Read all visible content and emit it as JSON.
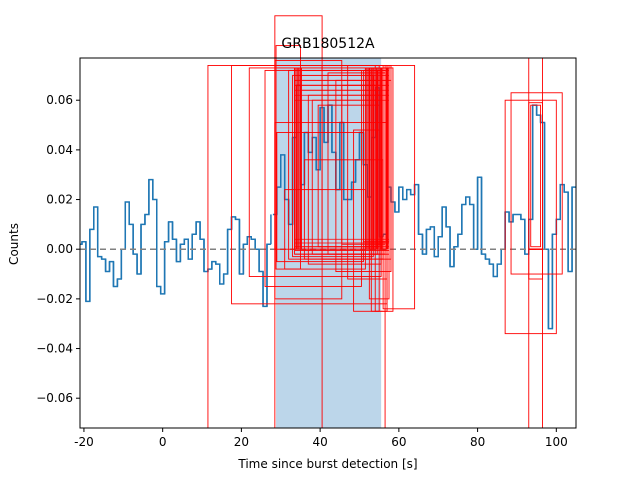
{
  "chart_data": {
    "type": "line",
    "title": "GRB180512A",
    "xlabel": "Time since burst detection [s]",
    "ylabel": "Counts",
    "xlim": [
      -21,
      105
    ],
    "ylim": [
      -0.072,
      0.077
    ],
    "xticks": [
      -20,
      0,
      20,
      40,
      60,
      80,
      100
    ],
    "yticks": [
      -0.06,
      -0.04,
      -0.02,
      0.0,
      0.02,
      0.04,
      0.06
    ],
    "grid": false,
    "colors": {
      "lightcurve": "#1f77b4",
      "burst_region": "#bcd6ea",
      "boxes": "#ff0000",
      "baseline": "#808080"
    },
    "baseline_y": 0.0,
    "burst_region": {
      "x_start": 28.8,
      "x_end": 55.5
    },
    "series": [
      {
        "step": "mid",
        "x_start": -21,
        "dx": 1,
        "values": [
          0.002,
          0.003,
          -0.021,
          0.008,
          0.017,
          -0.003,
          -0.004,
          -0.009,
          -0.005,
          -0.015,
          -0.012,
          0.0,
          0.019,
          0.01,
          -0.002,
          -0.01,
          0.01,
          0.014,
          0.028,
          0.02,
          -0.015,
          -0.018,
          0.003,
          0.011,
          0.004,
          -0.005,
          0.002,
          0.004,
          -0.004,
          0.006,
          0.011,
          0.004,
          -0.009,
          -0.008,
          -0.005,
          -0.006,
          -0.014,
          -0.01,
          0.008,
          0.013,
          0.012,
          -0.01,
          0.002,
          0.005,
          0.004,
          0.0,
          -0.009,
          -0.023,
          0.002,
          0.01,
          -0.006,
          -0.012,
          -0.004,
          0.0,
          0.002,
          0.001,
          -0.005,
          0.003,
          -0.015,
          -0.023,
          0.004,
          -0.005,
          -0.022,
          -0.012,
          0.0,
          0.005,
          0.012,
          0.024,
          0.032,
          0.011,
          -0.006,
          0.005,
          0.005,
          0.012,
          0.018,
          0.01,
          -0.004,
          -0.002,
          0.001,
          0.011,
          -0.002,
          0.003,
          -0.001,
          -0.005,
          0.004,
          0.002,
          0.008,
          0.003,
          -0.006,
          0.005,
          0.016,
          0.006,
          0.003,
          -0.002,
          0.008,
          0.015,
          0.021,
          -0.002,
          0.012,
          0.0,
          -0.003,
          0.004,
          0.009,
          0.005,
          0.015,
          0.018,
          -0.002,
          -0.006,
          0.014,
          0.025,
          0.008,
          0.002,
          -0.004,
          0.014,
          0.001,
          0.002,
          0.004,
          0.005,
          0.002,
          0.013,
          0.006,
          -0.005,
          -0.003,
          -0.004,
          0.0,
          0.006
        ]
      }
    ],
    "burst_curve": [
      {
        "x": 28.5,
        "y": 0.014
      },
      {
        "x": 29.5,
        "y": 0.025
      },
      {
        "x": 30.5,
        "y": 0.038
      },
      {
        "x": 31.5,
        "y": 0.02
      },
      {
        "x": 32.5,
        "y": 0.01
      },
      {
        "x": 33.5,
        "y": 0.045
      },
      {
        "x": 34.5,
        "y": 0.066
      },
      {
        "x": 35.5,
        "y": 0.026
      },
      {
        "x": 36.5,
        "y": 0.047
      },
      {
        "x": 37.5,
        "y": 0.039
      },
      {
        "x": 38.5,
        "y": 0.045
      },
      {
        "x": 39.5,
        "y": 0.032
      },
      {
        "x": 40.5,
        "y": 0.057
      },
      {
        "x": 41.5,
        "y": 0.043
      },
      {
        "x": 42.5,
        "y": 0.058
      },
      {
        "x": 43.5,
        "y": 0.039
      },
      {
        "x": 44.5,
        "y": 0.024
      },
      {
        "x": 45.5,
        "y": 0.051
      },
      {
        "x": 46.5,
        "y": 0.02
      },
      {
        "x": 47.5,
        "y": 0.02
      },
      {
        "x": 48.5,
        "y": 0.027
      },
      {
        "x": 49.5,
        "y": 0.036
      },
      {
        "x": 50.5,
        "y": 0.047
      },
      {
        "x": 51.5,
        "y": 0.034
      },
      {
        "x": 52.5,
        "y": 0.021
      },
      {
        "x": 53.5,
        "y": 0.045
      },
      {
        "x": 54.5,
        "y": 0.065
      },
      {
        "x": 55.5,
        "y": 0.005
      }
    ],
    "tail_curve": [
      {
        "x": 56.5,
        "y": 0.006
      },
      {
        "x": 57.5,
        "y": 0.025
      },
      {
        "x": 58.5,
        "y": 0.019
      },
      {
        "x": 59.5,
        "y": 0.015
      },
      {
        "x": 60.5,
        "y": 0.025
      },
      {
        "x": 61.5,
        "y": 0.02
      },
      {
        "x": 62.5,
        "y": 0.024
      },
      {
        "x": 63.5,
        "y": 0.022
      },
      {
        "x": 64.5,
        "y": 0.026
      },
      {
        "x": 65.5,
        "y": 0.006
      },
      {
        "x": 66.5,
        "y": -0.002
      },
      {
        "x": 67.5,
        "y": 0.008
      },
      {
        "x": 68.5,
        "y": 0.009
      },
      {
        "x": 69.5,
        "y": -0.003
      },
      {
        "x": 70.5,
        "y": 0.005
      },
      {
        "x": 71.5,
        "y": 0.017
      },
      {
        "x": 72.5,
        "y": 0.009
      },
      {
        "x": 73.5,
        "y": -0.007
      },
      {
        "x": 74.5,
        "y": 0.001
      },
      {
        "x": 75.5,
        "y": 0.006
      },
      {
        "x": 76.5,
        "y": 0.018
      },
      {
        "x": 77.5,
        "y": 0.021
      },
      {
        "x": 78.5,
        "y": 0.018
      },
      {
        "x": 79.5,
        "y": 0.0
      },
      {
        "x": 80.5,
        "y": 0.029
      },
      {
        "x": 81.5,
        "y": -0.002
      },
      {
        "x": 82.5,
        "y": -0.004
      },
      {
        "x": 83.5,
        "y": -0.006
      },
      {
        "x": 84.5,
        "y": -0.011
      },
      {
        "x": 85.5,
        "y": -0.006
      },
      {
        "x": 86.5,
        "y": 0.0
      },
      {
        "x": 87.5,
        "y": 0.015
      },
      {
        "x": 88.5,
        "y": 0.011
      },
      {
        "x": 89.5,
        "y": 0.014
      },
      {
        "x": 90.5,
        "y": 0.014
      },
      {
        "x": 91.5,
        "y": 0.012
      },
      {
        "x": 92.5,
        "y": -0.002
      },
      {
        "x": 93.5,
        "y": 0.012
      },
      {
        "x": 94.5,
        "y": 0.058
      },
      {
        "x": 95.5,
        "y": 0.054
      },
      {
        "x": 96.5,
        "y": 0.051
      },
      {
        "x": 97.5,
        "y": 0.0
      },
      {
        "x": 98.5,
        "y": -0.032
      },
      {
        "x": 99.5,
        "y": 0.006
      },
      {
        "x": 100.5,
        "y": 0.012
      },
      {
        "x": 101.5,
        "y": 0.026
      },
      {
        "x": 102.5,
        "y": 0.023
      },
      {
        "x": 103.5,
        "y": -0.009
      },
      {
        "x": 104.5,
        "y": 0.025
      }
    ],
    "boxes": [
      {
        "x0": 11.5,
        "x1": 56.5,
        "y0": -0.072,
        "y1": 0.074
      },
      {
        "x0": 17.5,
        "x1": 57.0,
        "y0": -0.022,
        "y1": 0.074
      },
      {
        "x0": 22.0,
        "x1": 55.5,
        "y0": -0.011,
        "y1": 0.073
      },
      {
        "x0": 26.0,
        "x1": 50.5,
        "y0": -0.015,
        "y1": 0.072
      },
      {
        "x0": 28.5,
        "x1": 40.5,
        "y0": -0.072,
        "y1": 0.094
      },
      {
        "x0": 28.5,
        "x1": 45.5,
        "y0": -0.02,
        "y1": 0.076
      },
      {
        "x0": 28.8,
        "x1": 35.0,
        "y0": -0.008,
        "y1": 0.082
      },
      {
        "x0": 29.0,
        "x1": 51.0,
        "y0": -0.005,
        "y1": 0.047
      },
      {
        "x0": 31.0,
        "x1": 51.5,
        "y0": -0.008,
        "y1": 0.024
      },
      {
        "x0": 32.0,
        "x1": 53.0,
        "y0": -0.004,
        "y1": 0.072
      },
      {
        "x0": 33.0,
        "x1": 53.5,
        "y0": -0.003,
        "y1": 0.07
      },
      {
        "x0": 33.5,
        "x1": 54.5,
        "y0": -0.002,
        "y1": 0.068
      },
      {
        "x0": 34.0,
        "x1": 54.0,
        "y0": 0.0,
        "y1": 0.066
      },
      {
        "x0": 35.0,
        "x1": 55.0,
        "y0": 0.001,
        "y1": 0.064
      },
      {
        "x0": 36.0,
        "x1": 56.0,
        "y0": -0.004,
        "y1": 0.036
      },
      {
        "x0": 37.0,
        "x1": 55.5,
        "y0": -0.006,
        "y1": 0.062
      },
      {
        "x0": 38.0,
        "x1": 55.5,
        "y0": -0.002,
        "y1": 0.06
      },
      {
        "x0": 39.5,
        "x1": 55.0,
        "y0": 0.001,
        "y1": 0.058
      },
      {
        "x0": 40.5,
        "x1": 58.0,
        "y0": -0.004,
        "y1": 0.074
      },
      {
        "x0": 42.0,
        "x1": 56.5,
        "y0": -0.002,
        "y1": 0.071
      },
      {
        "x0": 44.0,
        "x1": 58.0,
        "y0": -0.009,
        "y1": 0.068
      },
      {
        "x0": 45.5,
        "x1": 55.5,
        "y0": 0.002,
        "y1": 0.066
      },
      {
        "x0": 47.0,
        "x1": 57.0,
        "y0": -0.012,
        "y1": 0.074
      },
      {
        "x0": 48.5,
        "x1": 55.0,
        "y0": -0.025,
        "y1": 0.048
      },
      {
        "x0": 51.0,
        "x1": 56.5,
        "y0": 0.003,
        "y1": 0.072
      },
      {
        "x0": 52.5,
        "x1": 57.5,
        "y0": -0.02,
        "y1": 0.073
      },
      {
        "x0": 53.0,
        "x1": 58.5,
        "y0": -0.025,
        "y1": 0.073
      },
      {
        "x0": 54.0,
        "x1": 57.0,
        "y0": -0.025,
        "y1": 0.074
      },
      {
        "x0": 54.5,
        "x1": 56.5,
        "y0": 0.002,
        "y1": 0.072
      },
      {
        "x0": 55.0,
        "x1": 57.5,
        "y0": 0.003,
        "y1": 0.074
      },
      {
        "x0": 56.0,
        "x1": 64.0,
        "y0": -0.024,
        "y1": 0.074
      },
      {
        "x0": 28.5,
        "x1": 57.0,
        "y0": 0.0,
        "y1": 0.051
      },
      {
        "x0": 87.0,
        "x1": 100.0,
        "y0": -0.034,
        "y1": 0.06
      },
      {
        "x0": 88.5,
        "x1": 101.5,
        "y0": -0.01,
        "y1": 0.063
      },
      {
        "x0": 93.0,
        "x1": 96.5,
        "y0": -0.072,
        "y1": 0.077
      },
      {
        "x0": 93.0,
        "x1": 96.5,
        "y0": -0.012,
        "y1": 0.059
      },
      {
        "x0": 93.5,
        "x1": 96.0,
        "y0": 0.001,
        "y1": 0.058
      }
    ]
  }
}
